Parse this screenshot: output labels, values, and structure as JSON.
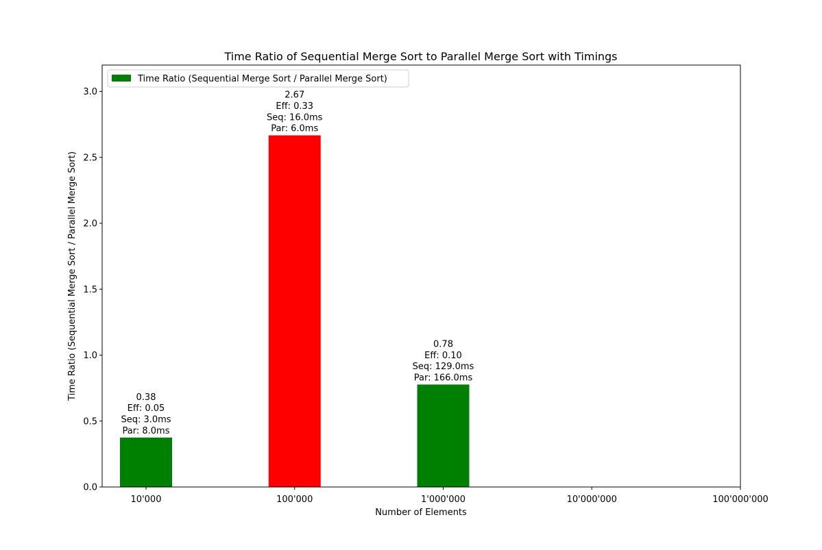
{
  "chart_data": {
    "type": "bar",
    "title": "Time Ratio of Sequential Merge Sort to Parallel Merge Sort with Timings",
    "xlabel": "Number of Elements",
    "ylabel": "Time Ratio (Sequential Merge Sort / Parallel Merge Sort)",
    "categories": [
      "10'000",
      "100'000",
      "1'000'000",
      "10'000'000",
      "100'000'000"
    ],
    "ylim": [
      0,
      3.2
    ],
    "yticks": [
      "0.0",
      "0.5",
      "1.0",
      "1.5",
      "2.0",
      "2.5",
      "3.0"
    ],
    "grid": false,
    "legend": {
      "position": "top-left",
      "entries": [
        {
          "label": "Time Ratio (Sequential Merge Sort / Parallel Merge Sort)",
          "color": "#008000"
        }
      ]
    },
    "series": [
      {
        "name": "Time Ratio (Sequential Merge Sort / Parallel Merge Sort)",
        "bars": [
          {
            "category": "10'000",
            "value": 0.375,
            "color": "#008000",
            "labels": [
              "0.38",
              "Eff: 0.05",
              "Seq: 3.0ms",
              "Par: 8.0ms"
            ]
          },
          {
            "category": "100'000",
            "value": 2.667,
            "color": "#ff0000",
            "labels": [
              "2.67",
              "Eff: 0.33",
              "Seq: 16.0ms",
              "Par: 6.0ms"
            ]
          },
          {
            "category": "1'000'000",
            "value": 0.777,
            "color": "#008000",
            "labels": [
              "0.78",
              "Eff: 0.10",
              "Seq: 129.0ms",
              "Par: 166.0ms"
            ]
          }
        ]
      }
    ]
  }
}
